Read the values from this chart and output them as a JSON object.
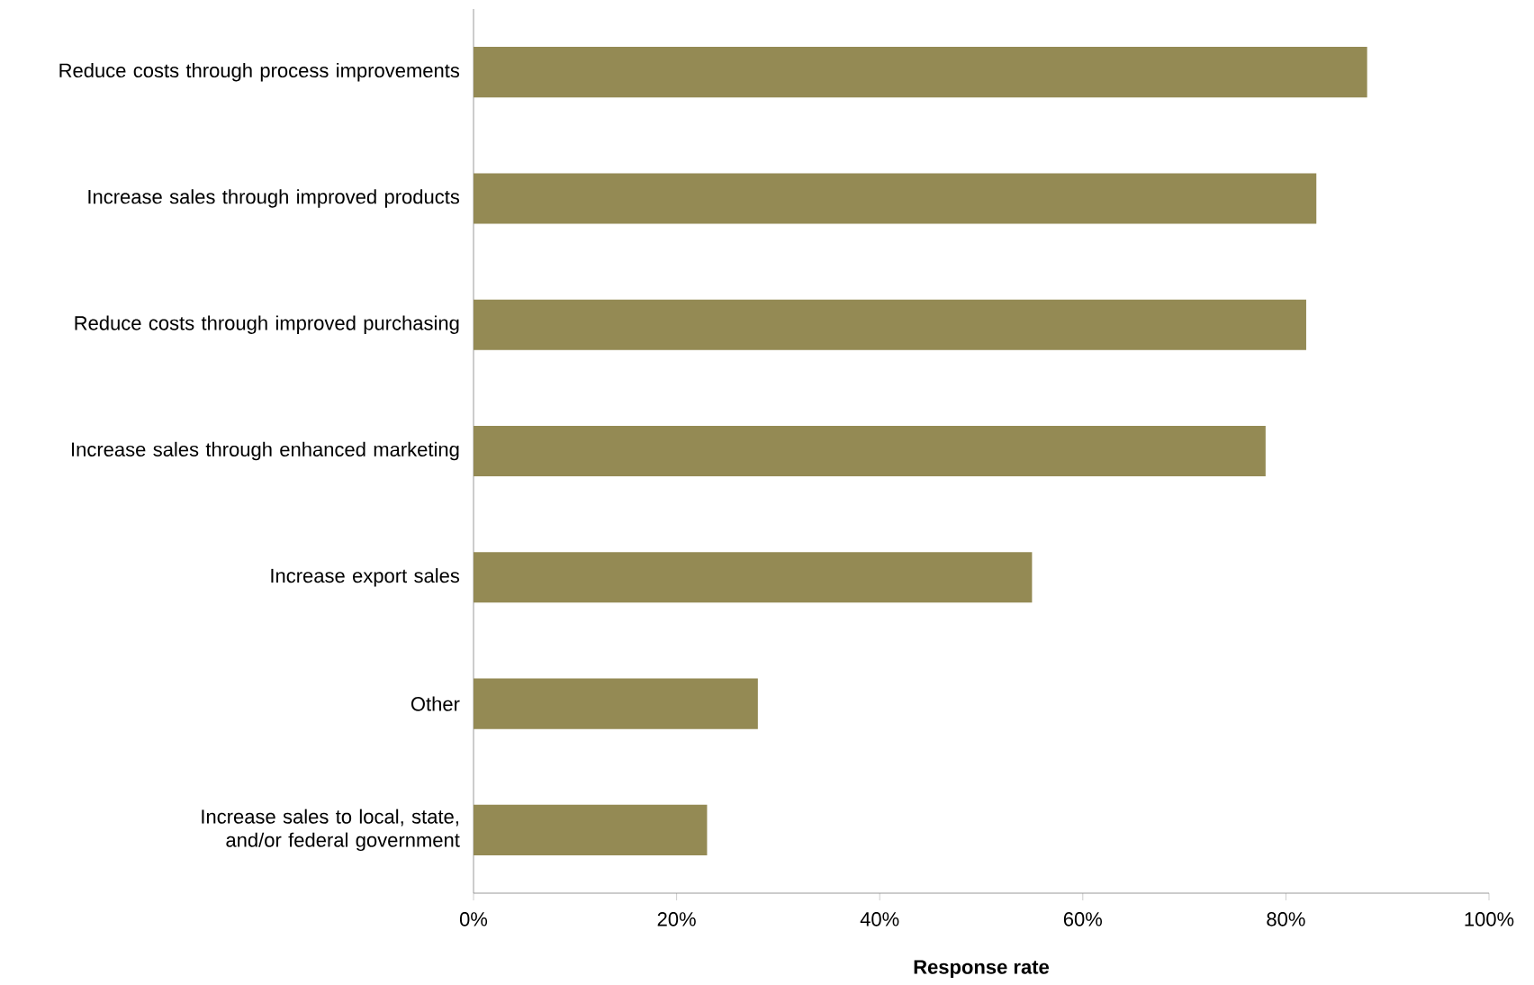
{
  "chart_data": {
    "type": "bar",
    "orientation": "horizontal",
    "xlabel": "Response rate",
    "categories": [
      "Reduce costs through process improvements",
      "Increase sales through improved products",
      "Reduce costs through improved purchasing",
      "Increase sales through enhanced marketing",
      "Increase export sales",
      "Other",
      "Increase sales to local, state, and/or federal government"
    ],
    "values": [
      88,
      83,
      82,
      78,
      55,
      28,
      23
    ],
    "color": "#948a54",
    "xlim": [
      0,
      100
    ],
    "xticks": [
      {
        "value": 0,
        "label": "0%"
      },
      {
        "value": 20,
        "label": "20%"
      },
      {
        "value": 40,
        "label": "40%"
      },
      {
        "value": 60,
        "label": "60%"
      },
      {
        "value": 80,
        "label": "80%"
      },
      {
        "value": 100,
        "label": "100%"
      }
    ],
    "grid": false
  }
}
